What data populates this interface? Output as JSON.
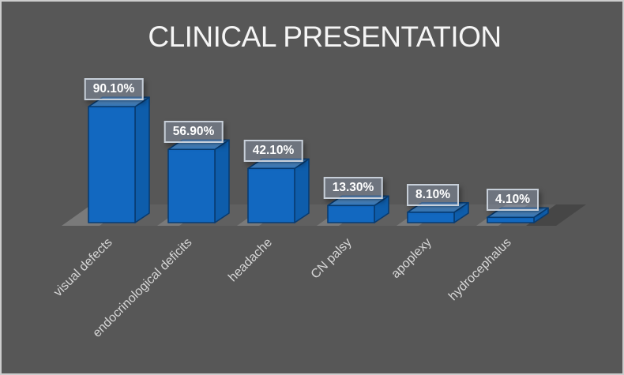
{
  "title": "CLINICAL PRESENTATION",
  "colors": {
    "background": "#575757",
    "frame_border": "#cdcdcd",
    "title_text": "#f5f5f5",
    "bar_front": "#1268c0",
    "bar_side": "#0e5dab",
    "bar_top_back": "#1f65a8",
    "bar_top_light": "#5697d8",
    "bar_top_front": "#2f77bd",
    "bar_edge": "#083c72",
    "floor": "#7a7a7a",
    "shadow": "rgba(30,30,30,0.28)",
    "value_box_bg": "rgba(142,157,182,0.42)",
    "value_box_border": "#c7cfd9",
    "value_text": "#ffffff",
    "category_text": "#d6d6d6"
  },
  "chart_data": {
    "type": "bar",
    "style": "3d",
    "title": "CLINICAL PRESENTATION",
    "categories": [
      "visual defects",
      "endocrinological deficits",
      "headache",
      "CN palsy",
      "apoplexy",
      "hydrocephalus"
    ],
    "values": [
      90.1,
      56.9,
      42.1,
      13.3,
      8.1,
      4.1
    ],
    "data_labels": [
      "90.10%",
      "56.90%",
      "42.10%",
      "13.30%",
      "8.10%",
      "4.10%"
    ],
    "xlabel": "",
    "ylabel": "",
    "ylim": [
      0,
      100
    ],
    "legend": "none",
    "grid": "off",
    "axis_ticks": "hidden",
    "category_label_rotation_deg": -45
  }
}
